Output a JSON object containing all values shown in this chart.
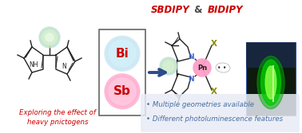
{
  "title_sbdipy": "SBDIPY",
  "title_amp": " & ",
  "title_bidipy": "BIDIPY",
  "title_color_red": "#cc0000",
  "title_color_dark": "#444444",
  "subtitle_left_line1": "Exploring the effect of",
  "subtitle_left_line2": "heavy pnictogens",
  "subtitle_left_color": "#cc0000",
  "bullet1": "• Multiple geometries available",
  "bullet2": "• Different photoluminescence features",
  "bullet_color": "#4a6fa5",
  "bullet_box_color": "#e8ecf5",
  "bi_label": "Bi",
  "sb_label": "Sb",
  "bi_color_inner": "#aaddee",
  "bi_color_outer": "#cce8f0",
  "sb_color_inner": "#ff80b0",
  "sb_color_outer": "#ffaacc",
  "bi_text_color": "#cc0000",
  "sb_text_color": "#cc0000",
  "arrow_color": "#2e4a8a",
  "pn_label": "Pn",
  "pn_color": "#ff9ec8",
  "n_color": "#4169e1",
  "x_label": "X",
  "x_color": "#8b8b00",
  "bg_color": "#ffffff",
  "mol_color": "#222222",
  "box_color": "#666666",
  "photo_bg": "#0a2a0a",
  "photo_border": "#4466aa"
}
